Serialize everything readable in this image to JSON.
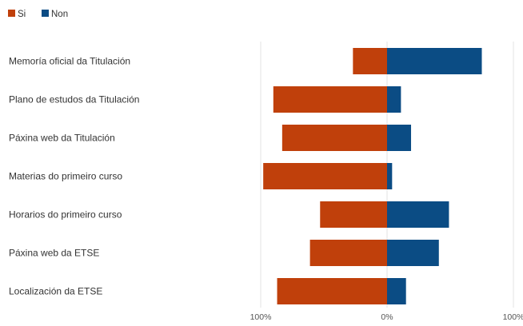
{
  "chart_data": {
    "type": "bar",
    "orientation": "horizontal-diverging",
    "categories": [
      "Memoría oficial da Titulación",
      "Plano de estudos da Titulación",
      "Páxina web da Titulación",
      "Materias do primeiro curso",
      "Horarios do primeiro curso",
      "Páxina web da ETSE",
      "Localización da ETSE"
    ],
    "series": [
      {
        "name": "Si",
        "color": "#c0400b",
        "values": [
          27,
          90,
          83,
          98,
          53,
          61,
          87
        ]
      },
      {
        "name": "Non",
        "color": "#0b4c84",
        "values": [
          75,
          11,
          19,
          4,
          49,
          41,
          15
        ]
      }
    ],
    "xlim": [
      -100,
      100
    ],
    "xticks": [
      "100%",
      "0%",
      "100%"
    ],
    "legend_position": "top-left",
    "grid": true
  }
}
